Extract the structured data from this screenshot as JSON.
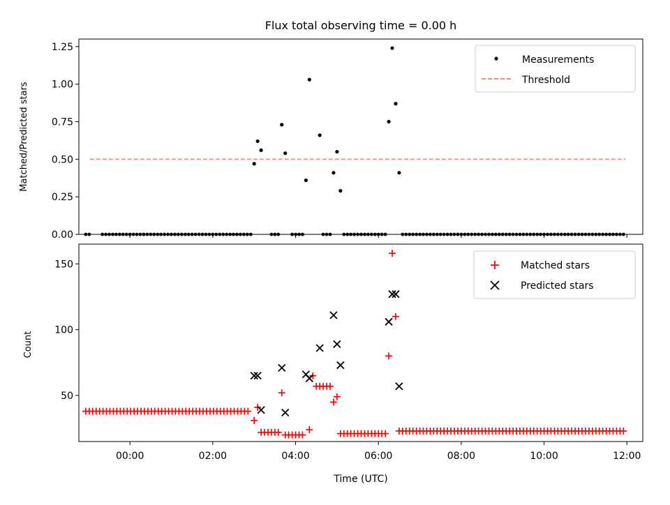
{
  "title": "Flux total observing time = 0.00 h",
  "colors": {
    "matched": "#ff0000",
    "predicted": "#000000",
    "threshold": "#ff8080",
    "measurement": "#000000"
  },
  "chart_data": [
    {
      "type": "scatter",
      "ylabel": "Matched/Predicted stars",
      "ylim": [
        0,
        1.3
      ],
      "xlim": [
        "22:46",
        "12:23"
      ],
      "yticks": [
        "0.00",
        "0.25",
        "0.50",
        "0.75",
        "1.00",
        "1.25"
      ],
      "legend_position": "top-right",
      "legend": {
        "measurements": "Measurements",
        "threshold": "Threshold"
      },
      "threshold": {
        "value": 0.5,
        "x_range": [
          "23:02",
          "11:58"
        ]
      },
      "series": [
        {
          "name": "Measurements",
          "points": [
            [
              "03:00",
              0.47
            ],
            [
              "03:05",
              0.62
            ],
            [
              "03:10",
              0.56
            ],
            [
              "03:40",
              0.73
            ],
            [
              "03:45",
              0.54
            ],
            [
              "04:15",
              0.36
            ],
            [
              "04:20",
              1.03
            ],
            [
              "04:35",
              0.66
            ],
            [
              "04:55",
              0.41
            ],
            [
              "05:00",
              0.55
            ],
            [
              "05:05",
              0.29
            ],
            [
              "06:15",
              0.75
            ],
            [
              "06:20",
              1.24
            ],
            [
              "06:25",
              0.87
            ],
            [
              "06:30",
              0.41
            ]
          ],
          "zero_segments": [
            [
              "22:56",
              "23:05"
            ],
            [
              "23:20",
              "02:55"
            ],
            [
              "03:25",
              "03:35"
            ],
            [
              "03:55",
              "04:10"
            ],
            [
              "04:40",
              "04:50"
            ],
            [
              "05:10",
              "06:10"
            ],
            [
              "06:35",
              "11:56"
            ]
          ]
        }
      ]
    },
    {
      "type": "scatter",
      "xlabel": "Time (UTC)",
      "ylabel": "Count",
      "ylim": [
        15,
        165
      ],
      "xlim": [
        "22:46",
        "12:23"
      ],
      "xticks": [
        "00:00",
        "02:00",
        "04:00",
        "06:00",
        "08:00",
        "10:00",
        "12:00"
      ],
      "yticks": [
        "50",
        "100",
        "150"
      ],
      "legend_position": "top-right",
      "legend": {
        "matched": "Matched stars",
        "predicted": "Predicted stars"
      },
      "series": [
        {
          "name": "Matched stars",
          "points": [
            [
              "03:00",
              31
            ],
            [
              "03:05",
              41
            ],
            [
              "03:40",
              52
            ],
            [
              "04:20",
              24
            ],
            [
              "04:25",
              65
            ],
            [
              "04:55",
              45
            ],
            [
              "05:00",
              49
            ],
            [
              "06:15",
              80
            ],
            [
              "06:20",
              158
            ],
            [
              "06:25",
              110
            ]
          ],
          "runs": [
            {
              "from": "22:56",
              "to": "02:55",
              "y": 38
            },
            {
              "from": "03:10",
              "to": "03:35",
              "y": 22
            },
            {
              "from": "03:45",
              "to": "04:10",
              "y": 20
            },
            {
              "from": "04:30",
              "to": "04:50",
              "y": 57
            },
            {
              "from": "05:05",
              "to": "06:10",
              "y": 21
            },
            {
              "from": "06:30",
              "to": "11:56",
              "y": 23
            }
          ]
        },
        {
          "name": "Predicted stars",
          "points": [
            [
              "03:00",
              65
            ],
            [
              "03:05",
              65
            ],
            [
              "03:10",
              39
            ],
            [
              "03:40",
              71
            ],
            [
              "03:45",
              37
            ],
            [
              "04:15",
              66
            ],
            [
              "04:20",
              63
            ],
            [
              "04:35",
              86
            ],
            [
              "04:55",
              111
            ],
            [
              "05:00",
              89
            ],
            [
              "05:05",
              73
            ],
            [
              "06:15",
              106
            ],
            [
              "06:20",
              127
            ],
            [
              "06:25",
              127
            ],
            [
              "06:30",
              57
            ]
          ]
        }
      ]
    }
  ]
}
